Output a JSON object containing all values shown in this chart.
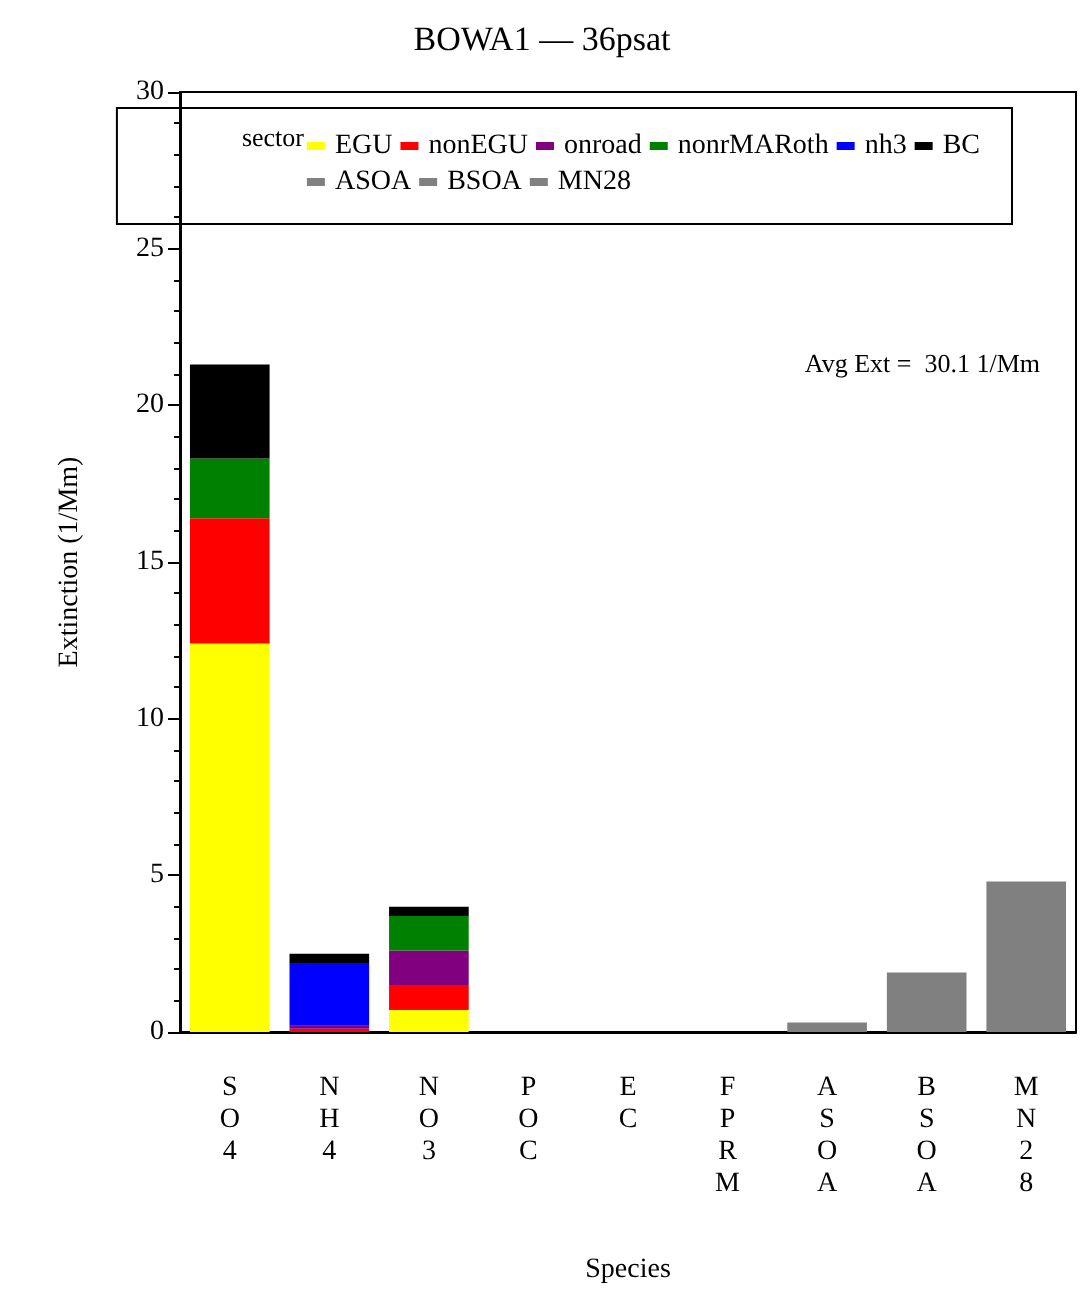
{
  "chart_data": {
    "type": "bar",
    "title": "BOWA1 — 36psat",
    "xlabel": "Species",
    "ylabel": "Extinction (1/Mm)",
    "legend_title": "sector",
    "annotations": [
      "Avg Ext =  30.1 1/Mm"
    ],
    "categories": [
      "SO4",
      "NH4",
      "NO3",
      "POC",
      "EC",
      "FPRM",
      "ASOA",
      "BSOA",
      "MN28"
    ],
    "stacked": true,
    "ylim": [
      0,
      30
    ],
    "yticks": [
      0,
      5,
      10,
      15,
      20,
      25,
      30
    ],
    "grid": false,
    "legend": "top right",
    "series": [
      {
        "name": "EGU",
        "color": "#ffff00",
        "values": [
          12.4,
          null,
          0.7,
          null,
          null,
          null,
          null,
          null,
          null
        ]
      },
      {
        "name": "nonEGU",
        "color": "#ff0000",
        "values": [
          4.0,
          0.1,
          0.8,
          null,
          null,
          null,
          null,
          null,
          null
        ]
      },
      {
        "name": "onroad",
        "color": "#800080",
        "values": [
          null,
          0.1,
          1.1,
          null,
          null,
          null,
          null,
          null,
          null
        ]
      },
      {
        "name": "nonrMARoth",
        "color": "#008000",
        "values": [
          1.9,
          null,
          1.1,
          null,
          null,
          null,
          null,
          null,
          null
        ]
      },
      {
        "name": "nh3",
        "color": "#0000ff",
        "values": [
          null,
          2.0,
          null,
          null,
          null,
          null,
          null,
          null,
          null
        ]
      },
      {
        "name": "BC",
        "color": "#000000",
        "values": [
          3.0,
          0.3,
          0.3,
          null,
          null,
          null,
          null,
          null,
          null
        ]
      },
      {
        "name": "ASOA",
        "color": "#808080",
        "values": [
          null,
          null,
          null,
          null,
          null,
          null,
          0.3,
          null,
          null
        ]
      },
      {
        "name": "BSOA",
        "color": "#808080",
        "values": [
          null,
          null,
          null,
          null,
          null,
          null,
          null,
          1.9,
          null
        ]
      },
      {
        "name": "MN28",
        "color": "#808080",
        "values": [
          null,
          null,
          null,
          null,
          null,
          null,
          null,
          null,
          4.8
        ]
      }
    ]
  }
}
